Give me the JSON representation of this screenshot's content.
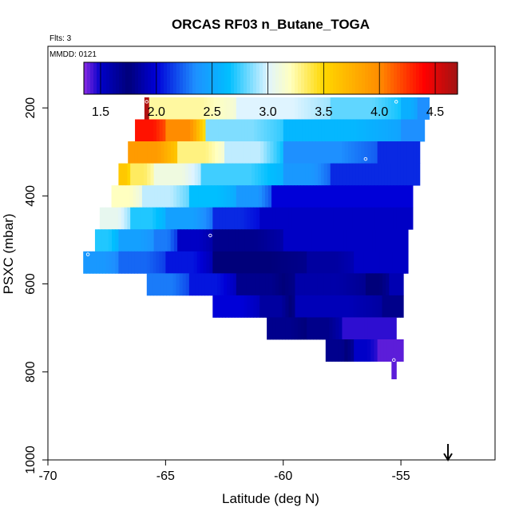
{
  "chart_data": {
    "type": "heatmap",
    "title": "ORCAS RF03 n_Butane_TOGA",
    "flights_label": "Flts: 3",
    "date_label": "MMDD: 0121",
    "xlabel": "Latitude (deg N)",
    "ylabel": "PSXC (mbar)",
    "xlim": [
      -70,
      -51
    ],
    "ylim": [
      1000,
      60
    ],
    "y_reversed": true,
    "x_ticks": [
      "-70",
      "-65",
      "-60",
      "-55"
    ],
    "y_ticks": [
      "200",
      "400",
      "600",
      "800",
      "1000"
    ],
    "colorbar": {
      "range": [
        1.35,
        4.7
      ],
      "ticks": [
        "1.5",
        "2.0",
        "2.5",
        "3.0",
        "3.5",
        "4.0",
        "4.5"
      ],
      "stops": [
        [
          1.35,
          "#8a2be2"
        ],
        [
          1.5,
          "#0000c8"
        ],
        [
          1.75,
          "#00007a"
        ],
        [
          2.0,
          "#0000d8"
        ],
        [
          2.35,
          "#1e90ff"
        ],
        [
          2.65,
          "#00bfff"
        ],
        [
          3.0,
          "#dff4ff"
        ],
        [
          3.2,
          "#ffffc0"
        ],
        [
          3.5,
          "#ffd700"
        ],
        [
          4.0,
          "#ff8c00"
        ],
        [
          4.4,
          "#ff0000"
        ],
        [
          4.7,
          "#a01414"
        ]
      ]
    },
    "rows": [
      {
        "pressure_top": 176,
        "pressure_bottom": 226,
        "segments": [
          {
            "x0": -65.9,
            "x1": -65.7,
            "value": 4.65
          },
          {
            "x0": -65.7,
            "x1": -62.0,
            "value": 3.25
          },
          {
            "x0": -62.0,
            "x1": -58.0,
            "value": 3.0
          },
          {
            "x0": -58.0,
            "x1": -55.0,
            "value": 2.8
          },
          {
            "x0": -55.0,
            "x1": -54.3,
            "value": 2.55
          },
          {
            "x0": -54.3,
            "x1": -53.8,
            "value": 2.35
          }
        ]
      },
      {
        "pressure_top": 226,
        "pressure_bottom": 276,
        "segments": [
          {
            "x0": -66.3,
            "x1": -65.0,
            "value": 4.35
          },
          {
            "x0": -65.0,
            "x1": -63.3,
            "value": 4.0
          },
          {
            "x0": -63.3,
            "x1": -60.0,
            "value": 2.85
          },
          {
            "x0": -60.0,
            "x1": -55.0,
            "value": 2.6
          },
          {
            "x0": -55.0,
            "x1": -54.0,
            "value": 2.35
          }
        ]
      },
      {
        "pressure_top": 276,
        "pressure_bottom": 326,
        "segments": [
          {
            "x0": -66.6,
            "x1": -64.5,
            "value": 3.9
          },
          {
            "x0": -64.5,
            "x1": -62.5,
            "value": 3.3
          },
          {
            "x0": -62.5,
            "x1": -60.0,
            "value": 2.95
          },
          {
            "x0": -60.0,
            "x1": -56.0,
            "value": 2.35
          },
          {
            "x0": -56.0,
            "x1": -54.2,
            "value": 2.1
          }
        ]
      },
      {
        "pressure_top": 326,
        "pressure_bottom": 376,
        "segments": [
          {
            "x0": -67.0,
            "x1": -66.5,
            "value": 3.6
          },
          {
            "x0": -66.5,
            "x1": -65.5,
            "value": 3.35
          },
          {
            "x0": -65.5,
            "x1": -63.5,
            "value": 3.1
          },
          {
            "x0": -63.5,
            "x1": -60.0,
            "value": 2.75
          },
          {
            "x0": -60.0,
            "x1": -58.0,
            "value": 2.4
          },
          {
            "x0": -58.0,
            "x1": -54.2,
            "value": 2.1
          }
        ]
      },
      {
        "pressure_top": 376,
        "pressure_bottom": 426,
        "segments": [
          {
            "x0": -67.3,
            "x1": -66.0,
            "value": 3.2
          },
          {
            "x0": -66.0,
            "x1": -64.0,
            "value": 2.95
          },
          {
            "x0": -64.0,
            "x1": -62.0,
            "value": 2.65
          },
          {
            "x0": -62.0,
            "x1": -60.5,
            "value": 2.4
          },
          {
            "x0": -60.5,
            "x1": -54.5,
            "value": 2.0
          }
        ]
      },
      {
        "pressure_top": 426,
        "pressure_bottom": 476,
        "segments": [
          {
            "x0": -67.8,
            "x1": -66.5,
            "value": 3.05
          },
          {
            "x0": -66.5,
            "x1": -65.0,
            "value": 2.7
          },
          {
            "x0": -65.0,
            "x1": -63.0,
            "value": 2.45
          },
          {
            "x0": -63.0,
            "x1": -61.0,
            "value": 2.1
          },
          {
            "x0": -61.0,
            "x1": -54.5,
            "value": 1.95
          }
        ]
      },
      {
        "pressure_top": 476,
        "pressure_bottom": 526,
        "segments": [
          {
            "x0": -68.0,
            "x1": -67.0,
            "value": 2.7
          },
          {
            "x0": -67.0,
            "x1": -65.5,
            "value": 2.45
          },
          {
            "x0": -65.5,
            "x1": -64.5,
            "value": 2.3
          },
          {
            "x0": -64.5,
            "x1": -63.0,
            "value": 1.95
          },
          {
            "x0": -63.0,
            "x1": -60.0,
            "value": 1.8
          },
          {
            "x0": -60.0,
            "x1": -54.7,
            "value": 1.95
          }
        ]
      },
      {
        "pressure_top": 526,
        "pressure_bottom": 576,
        "segments": [
          {
            "x0": -68.5,
            "x1": -67.0,
            "value": 2.4
          },
          {
            "x0": -67.0,
            "x1": -65.0,
            "value": 2.25
          },
          {
            "x0": -65.0,
            "x1": -63.0,
            "value": 2.05
          },
          {
            "x0": -63.0,
            "x1": -59.0,
            "value": 1.75
          },
          {
            "x0": -59.0,
            "x1": -57.0,
            "value": 1.85
          },
          {
            "x0": -57.0,
            "x1": -54.7,
            "value": 1.95
          }
        ]
      },
      {
        "pressure_top": 576,
        "pressure_bottom": 626,
        "segments": [
          {
            "x0": -65.8,
            "x1": -64.0,
            "value": 2.3
          },
          {
            "x0": -64.0,
            "x1": -62.0,
            "value": 2.05
          },
          {
            "x0": -62.0,
            "x1": -59.5,
            "value": 1.8
          },
          {
            "x0": -59.5,
            "x1": -56.5,
            "value": 1.6
          },
          {
            "x0": -56.5,
            "x1": -55.5,
            "value": 1.75
          },
          {
            "x0": -55.5,
            "x1": -54.9,
            "value": 1.9
          }
        ]
      },
      {
        "pressure_top": 626,
        "pressure_bottom": 676,
        "segments": [
          {
            "x0": -63.0,
            "x1": -61.0,
            "value": 2.0
          },
          {
            "x0": -61.0,
            "x1": -59.5,
            "value": 1.85
          },
          {
            "x0": -59.5,
            "x1": -55.8,
            "value": 1.55
          },
          {
            "x0": -55.8,
            "x1": -54.9,
            "value": 1.7
          }
        ]
      },
      {
        "pressure_top": 676,
        "pressure_bottom": 726,
        "segments": [
          {
            "x0": -60.7,
            "x1": -59.0,
            "value": 1.8
          },
          {
            "x0": -59.0,
            "x1": -57.5,
            "value": 1.7
          },
          {
            "x0": -57.5,
            "x1": -55.2,
            "value": 1.45
          }
        ]
      },
      {
        "pressure_top": 726,
        "pressure_bottom": 776,
        "segments": [
          {
            "x0": -58.2,
            "x1": -57.0,
            "value": 1.8
          },
          {
            "x0": -57.0,
            "x1": -56.0,
            "value": 1.5
          },
          {
            "x0": -56.0,
            "x1": -54.9,
            "value": 1.4
          }
        ]
      },
      {
        "pressure_top": 776,
        "pressure_bottom": 816,
        "segments": [
          {
            "x0": -55.4,
            "x1": -55.2,
            "value": 1.4
          }
        ]
      }
    ],
    "markers": [
      {
        "lat": -65.8,
        "p": 186
      },
      {
        "lat": -55.2,
        "p": 186
      },
      {
        "lat": -53.7,
        "p": 186
      },
      {
        "lat": -56.5,
        "p": 316
      },
      {
        "lat": -63.1,
        "p": 490
      },
      {
        "lat": -68.3,
        "p": 533
      },
      {
        "lat": -55.3,
        "p": 773
      }
    ],
    "arrow": {
      "lat": -53.0
    }
  }
}
